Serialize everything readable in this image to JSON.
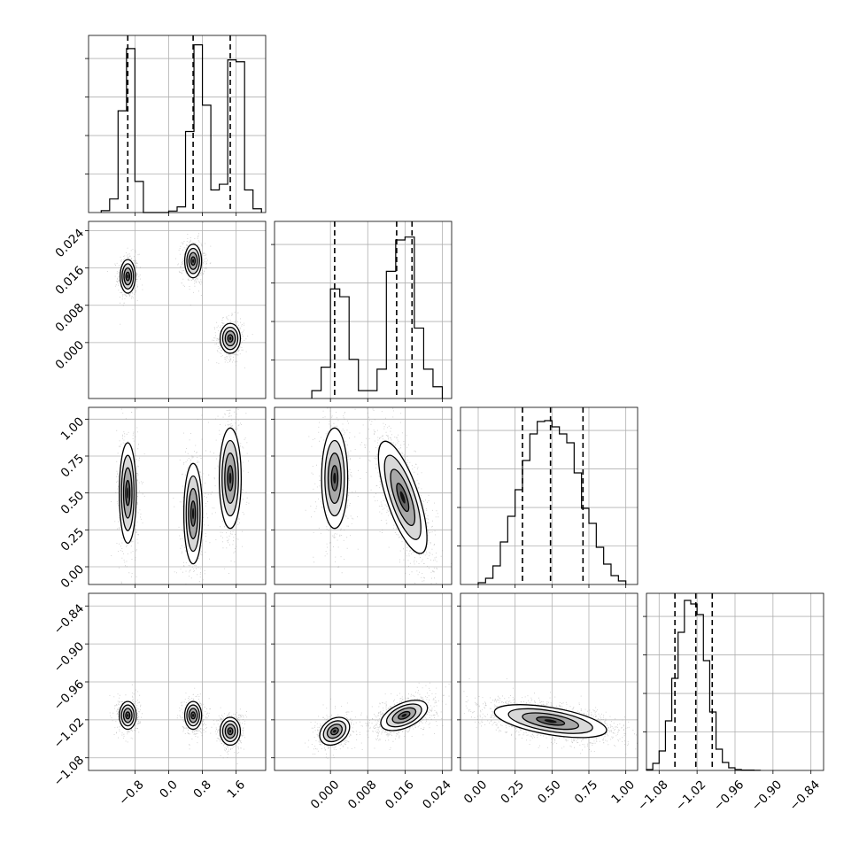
{
  "chart_data": {
    "type": "corner",
    "title": "",
    "grid": true,
    "parameters": [
      {
        "range": [
          -1.9,
          2.3
        ],
        "ticks": [
          -0.8,
          0.0,
          0.8,
          1.6
        ],
        "tick_labels": [
          "−0.8",
          "0.0",
          "0.8",
          "1.6"
        ],
        "histogram": {
          "bins": [
            -1.6,
            -1.4,
            -1.2,
            -1.0,
            -0.8,
            -0.6,
            -0.4,
            -0.2,
            0.0,
            0.2,
            0.4,
            0.6,
            0.8,
            1.0,
            1.2,
            1.4,
            1.6,
            1.8,
            2.0
          ],
          "counts": [
            10,
            72,
            540,
            870,
            165,
            0,
            0,
            0,
            8,
            30,
            430,
            890,
            570,
            120,
            150,
            810,
            800,
            120,
            20
          ],
          "quantiles": [
            -0.97,
            0.58,
            1.46
          ]
        },
        "hist_ylim": [
          0,
          940
        ]
      },
      {
        "range": [
          -0.012,
          0.026
        ],
        "ticks": [
          0.0,
          0.008,
          0.016,
          0.024
        ],
        "tick_labels": [
          "0.000",
          "0.008",
          "0.016",
          "0.024"
        ],
        "histogram": {
          "bins": [
            -0.004,
            -0.002,
            0.0,
            0.002,
            0.004,
            0.006,
            0.008,
            0.01,
            0.012,
            0.014,
            0.016,
            0.018,
            0.02,
            0.022
          ],
          "counts": [
            40,
            160,
            560,
            520,
            200,
            40,
            40,
            150,
            650,
            810,
            825,
            360,
            150,
            60
          ],
          "quantiles": [
            0.0009,
            0.0142,
            0.0175
          ]
        },
        "hist_ylim": [
          0,
          905
        ]
      },
      {
        "range": [
          -0.12,
          1.08
        ],
        "ticks": [
          0.0,
          0.25,
          0.5,
          0.75,
          1.0
        ],
        "tick_labels": [
          "0.00",
          "0.25",
          "0.50",
          "0.75",
          "1.00"
        ],
        "histogram": {
          "bins": [
            0.0,
            0.05,
            0.1,
            0.15,
            0.2,
            0.25,
            0.3,
            0.35,
            0.4,
            0.45,
            0.5,
            0.55,
            0.6,
            0.65,
            0.7,
            0.75,
            0.8,
            0.85,
            0.9,
            0.95,
            1.0
          ],
          "counts": [
            10,
            35,
            105,
            240,
            385,
            535,
            700,
            850,
            920,
            925,
            890,
            850,
            800,
            630,
            430,
            345,
            210,
            115,
            50,
            20
          ],
          "quantiles": [
            0.3,
            0.49,
            0.71
          ]
        },
        "hist_ylim": [
          0,
          1000
        ]
      },
      {
        "range": [
          -1.1,
          -0.82
        ],
        "ticks": [
          -1.08,
          -1.02,
          -0.96,
          -0.9,
          -0.84
        ],
        "tick_labels": [
          "−1.08",
          "−1.02",
          "−0.96",
          "−0.90",
          "−0.84"
        ],
        "histogram": {
          "bins": [
            -1.1,
            -1.09,
            -1.08,
            -1.07,
            -1.06,
            -1.05,
            -1.04,
            -1.03,
            -1.02,
            -1.01,
            -1.0,
            -0.99,
            -0.98,
            -0.97,
            -0.96,
            -0.95,
            -0.94,
            -0.93,
            -0.92
          ],
          "counts": [
            5,
            40,
            110,
            280,
            520,
            780,
            960,
            940,
            880,
            620,
            330,
            120,
            45,
            15,
            5,
            2,
            2,
            1
          ],
          "quantiles": [
            -1.055,
            -1.022,
            -0.996
          ]
        },
        "hist_ylim": [
          0,
          1000
        ]
      }
    ],
    "pairs": [
      {
        "x": 0,
        "y": 1,
        "clusters": [
          {
            "mean": [
              -0.97,
              0.0142
            ],
            "sd": [
              0.09,
              0.0018
            ],
            "rho": 0,
            "weight": 0.33
          },
          {
            "mean": [
              0.58,
              0.0175
            ],
            "sd": [
              0.1,
              0.0018
            ],
            "rho": 0,
            "weight": 0.33
          },
          {
            "mean": [
              1.46,
              0.0009
            ],
            "sd": [
              0.12,
              0.0016
            ],
            "rho": 0,
            "weight": 0.34
          }
        ]
      },
      {
        "x": 0,
        "y": 2,
        "clusters": [
          {
            "mean": [
              -0.97,
              0.5
            ],
            "sd": [
              0.1,
              0.17
            ],
            "rho": 0,
            "weight": 0.33
          },
          {
            "mean": [
              0.58,
              0.36
            ],
            "sd": [
              0.11,
              0.17
            ],
            "rho": 0,
            "weight": 0.33
          },
          {
            "mean": [
              1.46,
              0.6
            ],
            "sd": [
              0.13,
              0.17
            ],
            "rho": 0,
            "weight": 0.34
          }
        ]
      },
      {
        "x": 1,
        "y": 2,
        "clusters": [
          {
            "mean": [
              0.0009,
              0.6
            ],
            "sd": [
              0.0014,
              0.17
            ],
            "rho": 0,
            "weight": 0.34
          },
          {
            "mean": [
              0.0155,
              0.47
            ],
            "sd": [
              0.0026,
              0.19
            ],
            "rho": -0.72,
            "weight": 0.66
          }
        ]
      },
      {
        "x": 0,
        "y": 3,
        "clusters": [
          {
            "mean": [
              -0.97,
              -1.013
            ],
            "sd": [
              0.1,
              0.011
            ],
            "rho": 0,
            "weight": 0.33
          },
          {
            "mean": [
              0.58,
              -1.013
            ],
            "sd": [
              0.1,
              0.011
            ],
            "rho": 0,
            "weight": 0.33
          },
          {
            "mean": [
              1.46,
              -1.038
            ],
            "sd": [
              0.12,
              0.011
            ],
            "rho": 0,
            "weight": 0.34
          }
        ]
      },
      {
        "x": 1,
        "y": 3,
        "clusters": [
          {
            "mean": [
              0.0009,
              -1.038
            ],
            "sd": [
              0.0016,
              0.011
            ],
            "rho": 0.3,
            "weight": 0.34
          },
          {
            "mean": [
              0.0158,
              -1.013
            ],
            "sd": [
              0.0025,
              0.012
            ],
            "rho": 0.5,
            "weight": 0.66
          }
        ]
      },
      {
        "x": 2,
        "y": 3,
        "clusters": [
          {
            "mean": [
              0.49,
              -1.022
            ],
            "sd": [
              0.19,
              0.013
            ],
            "rho": -0.55,
            "weight": 1.0
          }
        ]
      }
    ]
  }
}
